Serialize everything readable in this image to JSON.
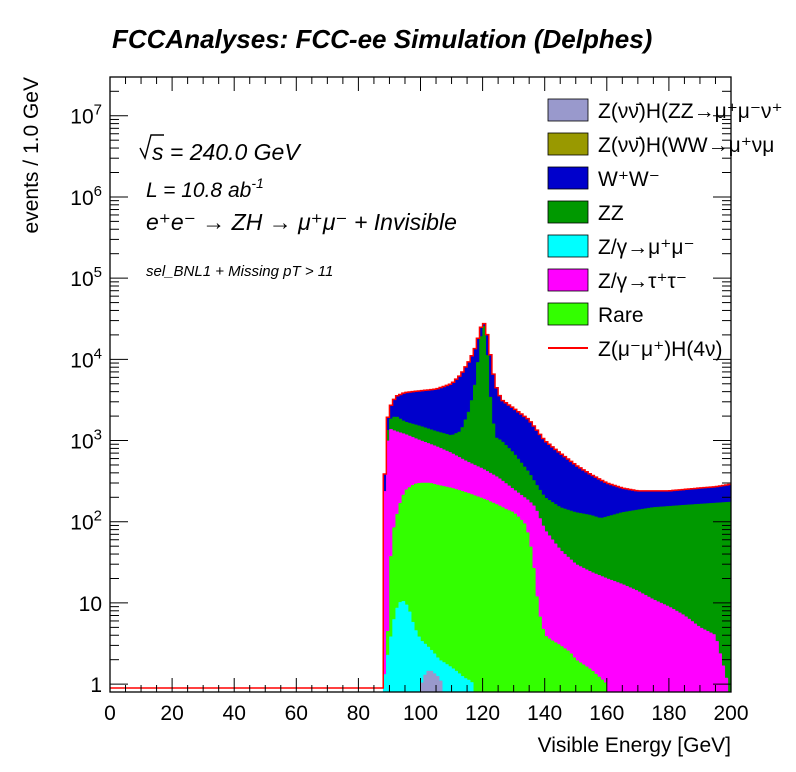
{
  "chart_data": {
    "type": "stacked-histogram",
    "title": "FCCAnalyses: FCC-ee Simulation (Delphes)",
    "xlabel": "Visible Energy [GeV]",
    "ylabel": "events / 1.0 GeV",
    "xlim": [
      0,
      200
    ],
    "ylim": [
      0.8,
      30000000
    ],
    "yscale": "log",
    "bin_width": 1,
    "x_ticks": [
      0,
      20,
      40,
      60,
      80,
      100,
      120,
      140,
      160,
      180,
      200
    ],
    "x_tick_labels": [
      "0",
      "20",
      "40",
      "60",
      "80",
      "100",
      "120",
      "140",
      "160",
      "180",
      "200"
    ],
    "y_tick_labels": [
      {
        "value": 10000000,
        "base": "10",
        "exp": "7"
      },
      {
        "value": 1000000,
        "base": "10",
        "exp": "6"
      },
      {
        "value": 100000,
        "base": "10",
        "exp": "5"
      },
      {
        "value": 10000,
        "base": "10",
        "exp": "4"
      },
      {
        "value": 1000,
        "base": "10",
        "exp": "3"
      },
      {
        "value": 100,
        "base": "10",
        "exp": "2"
      },
      {
        "value": 10,
        "base": "10",
        "exp": ""
      },
      {
        "value": 1,
        "base": "1",
        "exp": ""
      }
    ],
    "annotations": {
      "sqrt_s": {
        "prefix": "s",
        "rest": " = 240.0 GeV"
      },
      "lumi": {
        "text": "L = 10.8 ab",
        "sup": "-1"
      },
      "process": {
        "text": "e⁺e⁻ → ZH → μ⁺μ⁻ + Invisible"
      },
      "selection": "sel_BNL1 + Missing pT > 11"
    },
    "legend_position": "top-right",
    "series": [
      {
        "name": "Z(νν̄)H(ZZ→μ⁺μ⁻ν⁺",
        "color": "#9999cc",
        "type": "fill",
        "points": [
          [
            100,
            0.9
          ],
          [
            101,
            1.2
          ],
          [
            102,
            1.4
          ],
          [
            103,
            1.5
          ],
          [
            104,
            1.4
          ],
          [
            105,
            1.3
          ],
          [
            106,
            1.2
          ],
          [
            107,
            1.0
          ]
        ]
      },
      {
        "name": "Z(νν̄)H(WW→μ⁺νμ",
        "color": "#999900",
        "type": "fill",
        "points": []
      },
      {
        "name": "W⁺W⁻",
        "color": "#0000cc",
        "type": "fill",
        "points": [
          [
            88,
            100
          ],
          [
            89,
            1500
          ],
          [
            90,
            2500
          ],
          [
            92,
            3500
          ],
          [
            95,
            3900
          ],
          [
            100,
            4100
          ],
          [
            105,
            4300
          ],
          [
            110,
            5000
          ],
          [
            113,
            6500
          ],
          [
            116,
            10000
          ],
          [
            118,
            15000
          ],
          [
            119,
            22000
          ],
          [
            120,
            28000
          ],
          [
            121,
            27000
          ],
          [
            122,
            15000
          ],
          [
            124,
            5000
          ],
          [
            126,
            3200
          ],
          [
            130,
            2500
          ],
          [
            135,
            1800
          ],
          [
            140,
            1000
          ],
          [
            145,
            700
          ],
          [
            150,
            500
          ],
          [
            155,
            380
          ],
          [
            160,
            300
          ],
          [
            165,
            260
          ],
          [
            170,
            240
          ],
          [
            175,
            240
          ],
          [
            180,
            240
          ],
          [
            185,
            250
          ],
          [
            190,
            260
          ],
          [
            195,
            270
          ],
          [
            200,
            290
          ]
        ]
      },
      {
        "name": "ZZ",
        "color": "#009900",
        "type": "fill",
        "points": [
          [
            88,
            50
          ],
          [
            89,
            1000
          ],
          [
            90,
            1800
          ],
          [
            92,
            2000
          ],
          [
            95,
            1700
          ],
          [
            100,
            1500
          ],
          [
            105,
            1300
          ],
          [
            110,
            1150
          ],
          [
            113,
            1300
          ],
          [
            116,
            2500
          ],
          [
            118,
            6000
          ],
          [
            119,
            14000
          ],
          [
            120,
            26000
          ],
          [
            121,
            25000
          ],
          [
            122,
            5000
          ],
          [
            124,
            1100
          ],
          [
            126,
            1000
          ],
          [
            130,
            700
          ],
          [
            135,
            400
          ],
          [
            137,
            300
          ],
          [
            140,
            200
          ],
          [
            145,
            150
          ],
          [
            150,
            130
          ],
          [
            155,
            120
          ],
          [
            158,
            110
          ],
          [
            160,
            115
          ],
          [
            165,
            130
          ],
          [
            170,
            140
          ],
          [
            175,
            150
          ],
          [
            180,
            155
          ],
          [
            185,
            160
          ],
          [
            190,
            165
          ],
          [
            195,
            170
          ],
          [
            200,
            175
          ]
        ]
      },
      {
        "name": "Z/γ→μ⁺μ⁻",
        "color": "#00ffff",
        "type": "fill",
        "points": [
          [
            88,
            1
          ],
          [
            90,
            3
          ],
          [
            92,
            8
          ],
          [
            94,
            11
          ],
          [
            96,
            9
          ],
          [
            98,
            5
          ],
          [
            100,
            3.5
          ],
          [
            102,
            3
          ],
          [
            104,
            2.5
          ],
          [
            106,
            2
          ],
          [
            108,
            1.8
          ],
          [
            110,
            1.6
          ],
          [
            112,
            1.4
          ],
          [
            114,
            1.2
          ],
          [
            116,
            1.1
          ],
          [
            117,
            1
          ]
        ]
      },
      {
        "name": "Z/γ→τ⁺τ⁻",
        "color": "#ff00ff",
        "type": "fill",
        "points": [
          [
            88,
            80
          ],
          [
            89,
            700
          ],
          [
            90,
            1400
          ],
          [
            92,
            1300
          ],
          [
            95,
            1200
          ],
          [
            100,
            1000
          ],
          [
            105,
            850
          ],
          [
            110,
            700
          ],
          [
            115,
            550
          ],
          [
            120,
            450
          ],
          [
            125,
            350
          ],
          [
            130,
            250
          ],
          [
            135,
            180
          ],
          [
            137,
            150
          ],
          [
            140,
            80
          ],
          [
            145,
            45
          ],
          [
            150,
            30
          ],
          [
            155,
            24
          ],
          [
            160,
            20
          ],
          [
            165,
            17
          ],
          [
            170,
            14
          ],
          [
            175,
            11
          ],
          [
            180,
            9
          ],
          [
            185,
            7
          ],
          [
            190,
            5
          ],
          [
            195,
            4
          ],
          [
            199,
            1
          ]
        ]
      },
      {
        "name": "Rare",
        "color": "#33ff00",
        "type": "fill",
        "points": [
          [
            89,
            1
          ],
          [
            90,
            20
          ],
          [
            91,
            70
          ],
          [
            93,
            150
          ],
          [
            95,
            240
          ],
          [
            98,
            290
          ],
          [
            100,
            300
          ],
          [
            103,
            300
          ],
          [
            106,
            280
          ],
          [
            110,
            260
          ],
          [
            113,
            240
          ],
          [
            116,
            220
          ],
          [
            119,
            200
          ],
          [
            122,
            180
          ],
          [
            125,
            160
          ],
          [
            128,
            140
          ],
          [
            130,
            130
          ],
          [
            132,
            110
          ],
          [
            134,
            90
          ],
          [
            136,
            40
          ],
          [
            138,
            8
          ],
          [
            140,
            4
          ],
          [
            142,
            3.5
          ],
          [
            145,
            3
          ],
          [
            148,
            2.5
          ],
          [
            150,
            2
          ],
          [
            155,
            1.5
          ],
          [
            160,
            1
          ]
        ]
      },
      {
        "name": "Z(μ⁻μ⁺)H(4ν)",
        "color": "#ff0000",
        "type": "line",
        "points": []
      }
    ]
  }
}
